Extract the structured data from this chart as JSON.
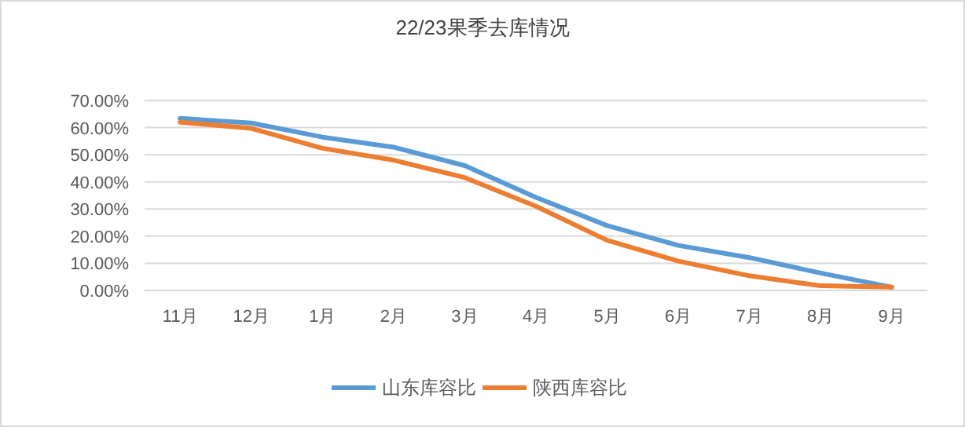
{
  "chart_data": {
    "type": "line",
    "title": "22/23果季去库情况",
    "categories": [
      "11月",
      "12月",
      "1月",
      "2月",
      "3月",
      "4月",
      "5月",
      "6月",
      "7月",
      "8月",
      "9月"
    ],
    "series": [
      {
        "name": "山东库容比",
        "color": "#5b9bd5",
        "values": [
          63.4,
          61.7,
          56.5,
          52.8,
          46.0,
          34.3,
          23.9,
          16.6,
          12.1,
          6.4,
          1.2
        ]
      },
      {
        "name": "陕西库容比",
        "color": "#ed7d31",
        "values": [
          62.0,
          59.7,
          52.4,
          48.0,
          41.6,
          31.0,
          18.5,
          10.8,
          5.4,
          1.7,
          1.2
        ]
      }
    ],
    "ylim": [
      0,
      70
    ],
    "yticks": [
      {
        "value": 0,
        "label": "0.00%"
      },
      {
        "value": 10,
        "label": "10.00%"
      },
      {
        "value": 20,
        "label": "20.00%"
      },
      {
        "value": 30,
        "label": "30.00%"
      },
      {
        "value": 40,
        "label": "40.00%"
      },
      {
        "value": 50,
        "label": "50.00%"
      },
      {
        "value": 60,
        "label": "60.00%"
      },
      {
        "value": 70,
        "label": "70.00%"
      }
    ],
    "grid": "y",
    "legend": "bottom",
    "marker": "none",
    "line_style": "solid"
  }
}
